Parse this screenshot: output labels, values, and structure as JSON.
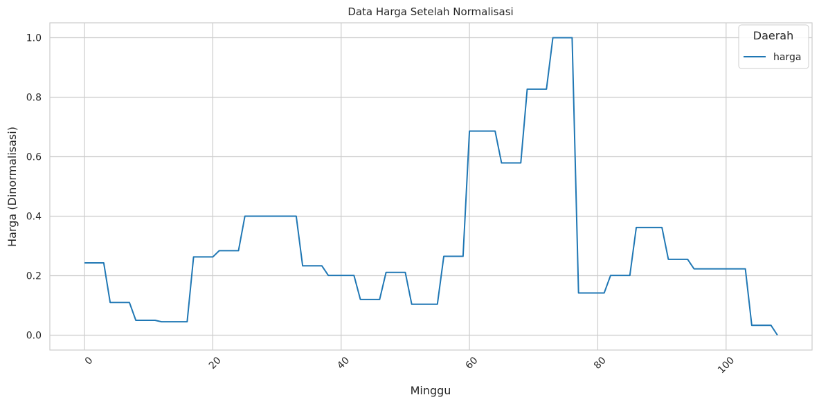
{
  "chart_data": {
    "type": "line",
    "title": "Data Harga Setelah Normalisasi",
    "xlabel": "Minggu",
    "ylabel": "Harga (Dinormalisasi)",
    "xlim": [
      -5.4,
      113.4
    ],
    "ylim": [
      -0.05,
      1.05
    ],
    "xticks": [
      0,
      20,
      40,
      60,
      80,
      100
    ],
    "yticks": [
      0.0,
      0.2,
      0.4,
      0.6,
      0.8,
      1.0
    ],
    "xtick_labels": [
      "0",
      "20",
      "40",
      "60",
      "80",
      "100"
    ],
    "ytick_labels": [
      "0.0",
      "0.2",
      "0.4",
      "0.6",
      "0.8",
      "1.0"
    ],
    "grid": true,
    "legend": {
      "title": "Daerah",
      "position": "top-right"
    },
    "series": [
      {
        "name": "harga",
        "color": "#1f77b4",
        "x": [
          0,
          1,
          2,
          3,
          4,
          5,
          6,
          7,
          8,
          9,
          10,
          11,
          12,
          13,
          14,
          15,
          16,
          17,
          18,
          19,
          20,
          21,
          22,
          23,
          24,
          25,
          26,
          27,
          28,
          29,
          30,
          31,
          32,
          33,
          34,
          35,
          36,
          37,
          38,
          39,
          40,
          41,
          42,
          43,
          44,
          45,
          46,
          47,
          48,
          49,
          50,
          51,
          52,
          53,
          54,
          55,
          56,
          57,
          58,
          59,
          60,
          61,
          62,
          63,
          64,
          65,
          66,
          67,
          68,
          69,
          70,
          71,
          72,
          73,
          74,
          75,
          76,
          77,
          78,
          79,
          80,
          81,
          82,
          83,
          84,
          85,
          86,
          87,
          88,
          89,
          90,
          91,
          92,
          93,
          94,
          95,
          96,
          97,
          98,
          99,
          100,
          101,
          102,
          103,
          104,
          105,
          106,
          107,
          108
        ],
        "y": [
          0.243,
          0.243,
          0.243,
          0.243,
          0.11,
          0.11,
          0.11,
          0.11,
          0.05,
          0.05,
          0.05,
          0.05,
          0.045,
          0.045,
          0.045,
          0.045,
          0.045,
          0.263,
          0.263,
          0.263,
          0.263,
          0.284,
          0.284,
          0.284,
          0.284,
          0.4,
          0.4,
          0.4,
          0.4,
          0.4,
          0.4,
          0.4,
          0.4,
          0.4,
          0.233,
          0.233,
          0.233,
          0.233,
          0.201,
          0.201,
          0.201,
          0.201,
          0.201,
          0.12,
          0.12,
          0.12,
          0.12,
          0.211,
          0.211,
          0.211,
          0.211,
          0.104,
          0.104,
          0.104,
          0.104,
          0.104,
          0.265,
          0.265,
          0.265,
          0.265,
          0.686,
          0.686,
          0.686,
          0.686,
          0.686,
          0.579,
          0.579,
          0.579,
          0.579,
          0.827,
          0.827,
          0.827,
          0.827,
          1.0,
          1.0,
          1.0,
          1.0,
          0.142,
          0.142,
          0.142,
          0.142,
          0.142,
          0.201,
          0.201,
          0.201,
          0.201,
          0.362,
          0.362,
          0.362,
          0.362,
          0.362,
          0.255,
          0.255,
          0.255,
          0.255,
          0.223,
          0.223,
          0.223,
          0.223,
          0.223,
          0.223,
          0.223,
          0.223,
          0.223,
          0.033,
          0.033,
          0.033,
          0.033,
          0.0
        ]
      }
    ]
  }
}
